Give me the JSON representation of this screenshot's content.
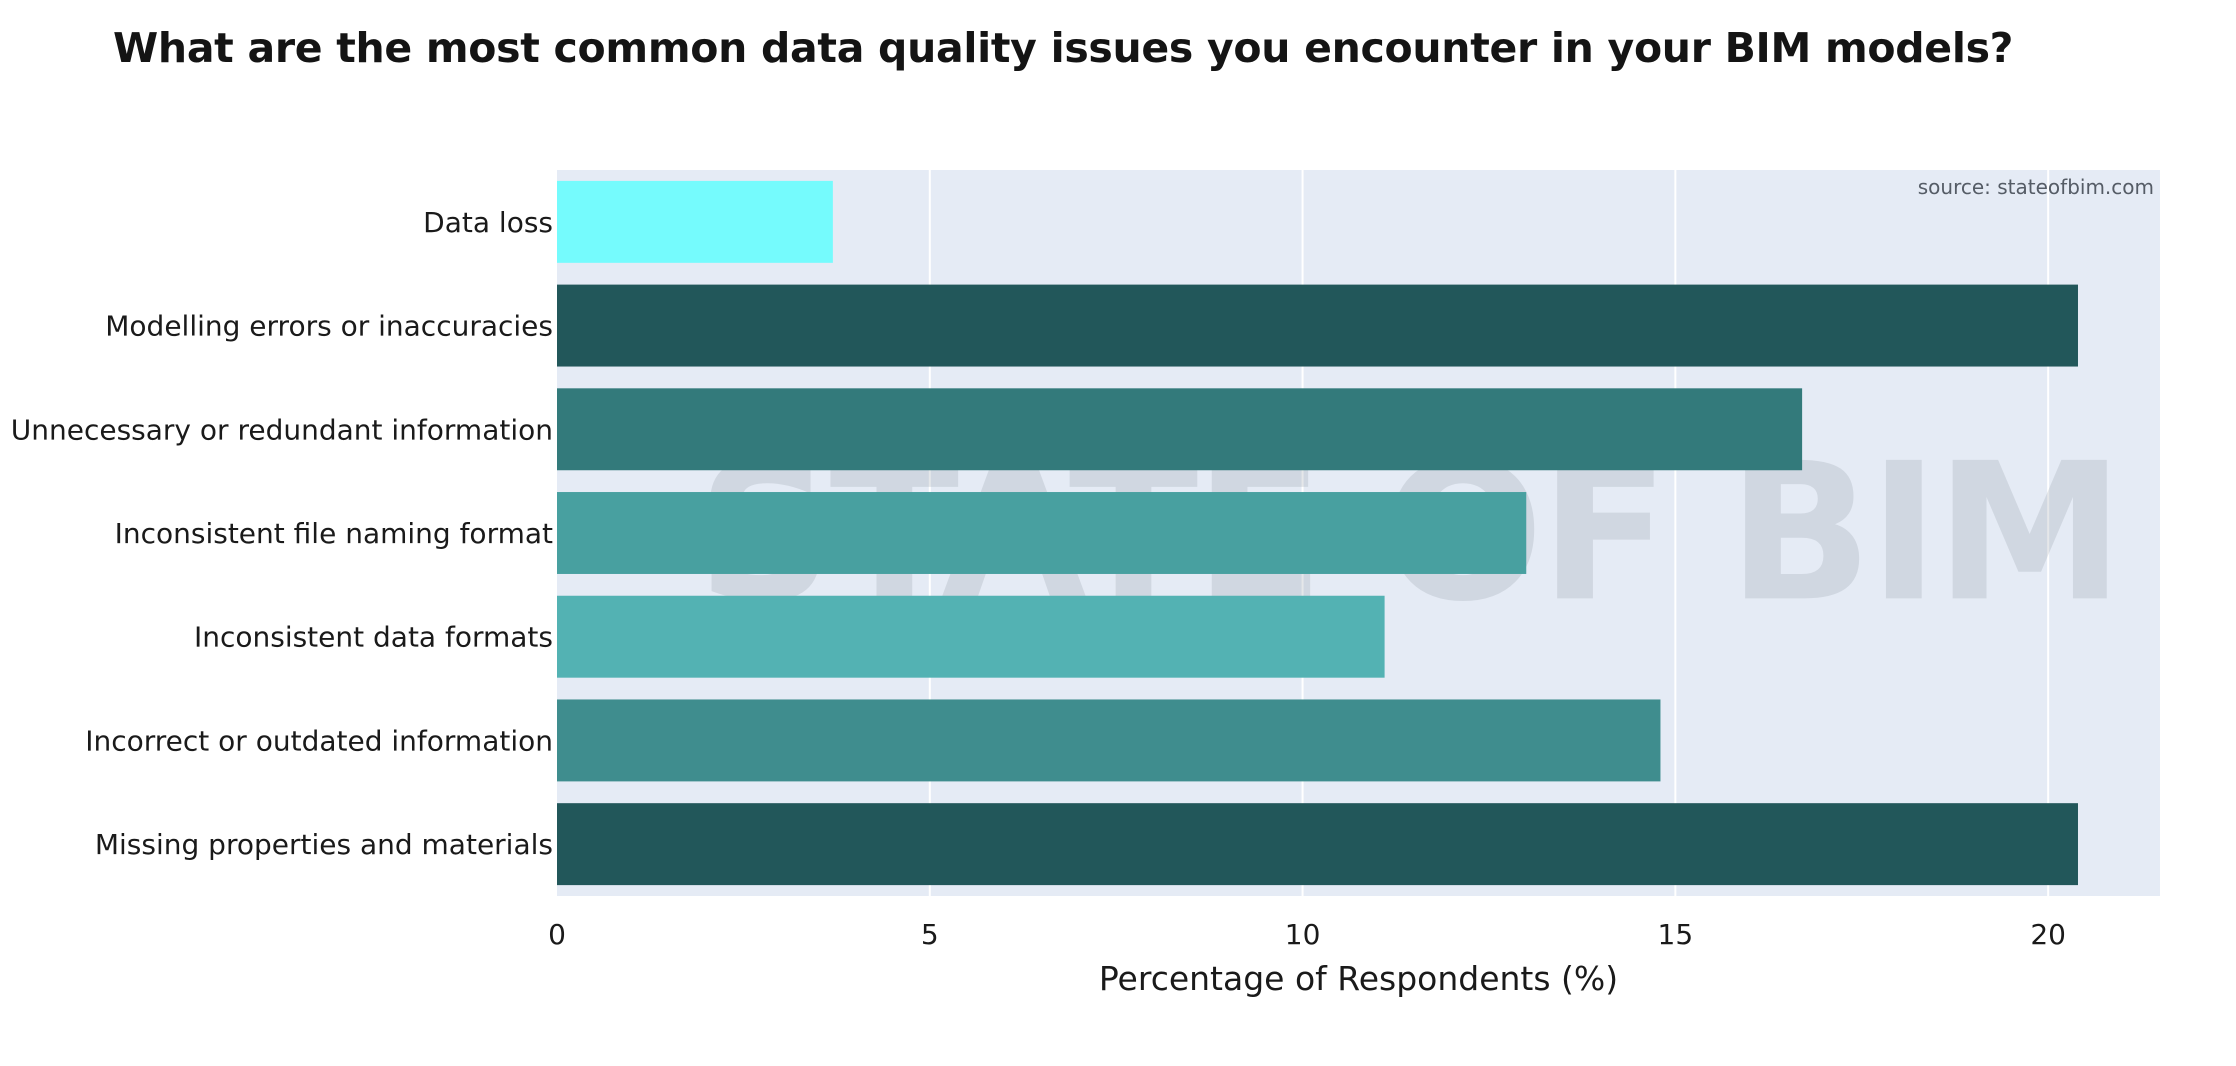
{
  "chart_data": {
    "type": "bar",
    "orientation": "horizontal",
    "title": "What are the most common data quality issues you encounter in your BIM models?",
    "xlabel": "Percentage of Respondents (%)",
    "ylabel": "",
    "xlim": [
      0,
      21.5
    ],
    "xticks": [
      0,
      5,
      10,
      15,
      20
    ],
    "grid": true,
    "categories": [
      "Data loss",
      "Modelling errors or inaccuracies",
      "Unnecessary or redundant information",
      "Inconsistent file naming format",
      "Inconsistent data formats",
      "Incorrect or outdated information",
      "Missing properties and materials"
    ],
    "values": [
      3.7,
      20.4,
      16.7,
      13.0,
      11.1,
      14.8,
      20.4
    ],
    "bar_colors": [
      "#75fbfd",
      "#22575a",
      "#337a7b",
      "#48a0a0",
      "#53b2b3",
      "#3f8d8e",
      "#22575a"
    ],
    "plot_background": "#e5ebf5",
    "annotation": "source: stateofbim.com",
    "watermark": "STATE OF BIM"
  }
}
